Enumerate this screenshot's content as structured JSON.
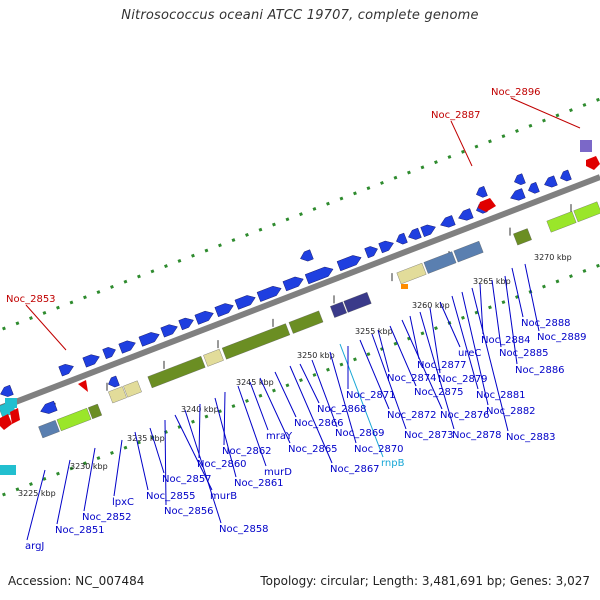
{
  "title": "Nitrosococcus oceani ATCC 19707, complete genome",
  "footer": {
    "accession": "Accession: NC_007484",
    "summary": "Topology: circular; Length: 3,481,691 bp; Genes: 3,027"
  },
  "colors": {
    "gene_blue": "#1f3fe0",
    "highlight_red": "#e00000",
    "label_blue": "#0000c8",
    "label_red": "#c00000",
    "label_cyan": "#19a7d6",
    "backbone": "#808080",
    "tick_green": "#2e8b2e",
    "cog_olive": "#6b8e23",
    "cog_khaki": "#e2dc9a",
    "cog_lime": "#9ae62a",
    "cog_navy": "#3a3a8a",
    "cog_steel": "#5a7fb0",
    "cog_purple": "#7b68c8",
    "cog_cyan": "#22bfcf",
    "cog_orange": "#ff8c00"
  },
  "scale_ticks": [
    "3225 kbp",
    "3230 kbp",
    "3235 kbp",
    "3240 kbp",
    "3245 kbp",
    "3250 kbp",
    "3255 kbp",
    "3260 kbp",
    "3265 kbp",
    "3270 kbp"
  ],
  "gene_labels": [
    "argJ",
    "Noc_2851",
    "Noc_2852",
    "lpxC",
    "Noc_2855",
    "Noc_2857",
    "Noc_2856",
    "murB",
    "Noc_2858",
    "Noc_2860",
    "Noc_2861",
    "Noc_2862",
    "murD",
    "mraY",
    "Noc_2865",
    "Noc_2866",
    "Noc_2867",
    "Noc_2868",
    "Noc_2869",
    "Noc_2870",
    "rnpB",
    "Noc_2871",
    "Noc_2872",
    "Noc_2873",
    "Noc_2874",
    "Noc_2875",
    "Noc_2876",
    "Noc_2877",
    "Noc_2878",
    "Noc_2879",
    "ureC",
    "Noc_2881",
    "Noc_2882",
    "Noc_2883",
    "Noc_2884",
    "Noc_2885",
    "Noc_2886",
    "Noc_2888",
    "Noc_2889"
  ],
  "highlight_labels": [
    "Noc_2853",
    "Noc_2887",
    "Noc_2896"
  ],
  "tracks": [
    "cog-track",
    "forward-genes",
    "backbone",
    "reverse-genes",
    "highlight-genes"
  ]
}
